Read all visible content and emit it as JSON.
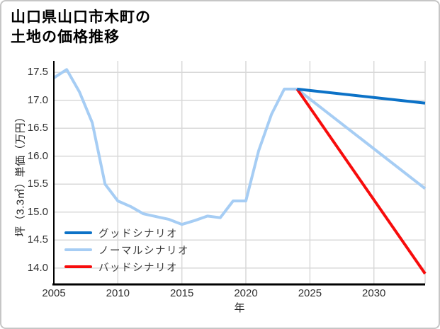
{
  "card": {
    "title_line1": "山口県山口市木町の",
    "title_line2": "土地の価格推移"
  },
  "chart_data": {
    "type": "line",
    "title": "山口県山口市木町の 土地の価格推移",
    "xlabel": "年",
    "ylabel": "坪（3.3㎡）単価（万円）",
    "xlim": [
      2005,
      2034
    ],
    "ylim": [
      13.72,
      17.68
    ],
    "xticks": [
      "2005",
      "2010",
      "2015",
      "2020",
      "2025",
      "2030"
    ],
    "yticks": [
      "14.0",
      "14.5",
      "15.0",
      "15.5",
      "16.0",
      "16.5",
      "17.0",
      "17.5"
    ],
    "grid": true,
    "legend_position": "inside-bottom-left",
    "colors": {
      "grid": "#d9d9d9",
      "axis": "#000000"
    },
    "draw_order": [
      1,
      2,
      0
    ],
    "series": [
      {
        "id": "good",
        "name": "グッドシナリオ",
        "color": "#0c72c7",
        "x": [
          2024,
          2034
        ],
        "y": [
          17.2,
          16.95
        ]
      },
      {
        "id": "normal",
        "name": "ノーマルシナリオ",
        "color": "#a6cdf4",
        "x": [
          2005,
          2006,
          2007,
          2008,
          2009,
          2010,
          2011,
          2012,
          2013,
          2014,
          2015,
          2016,
          2017,
          2018,
          2019,
          2020,
          2021,
          2022,
          2023,
          2024,
          2034
        ],
        "y": [
          17.4,
          17.55,
          17.15,
          16.6,
          15.5,
          15.2,
          15.1,
          14.97,
          14.92,
          14.87,
          14.78,
          14.85,
          14.93,
          14.9,
          15.2,
          15.2,
          16.1,
          16.75,
          17.2,
          17.2,
          15.42
        ]
      },
      {
        "id": "bad",
        "name": "バッドシナリオ",
        "color": "#f70c0c",
        "x": [
          2024,
          2034
        ],
        "y": [
          17.2,
          13.9
        ]
      }
    ]
  }
}
